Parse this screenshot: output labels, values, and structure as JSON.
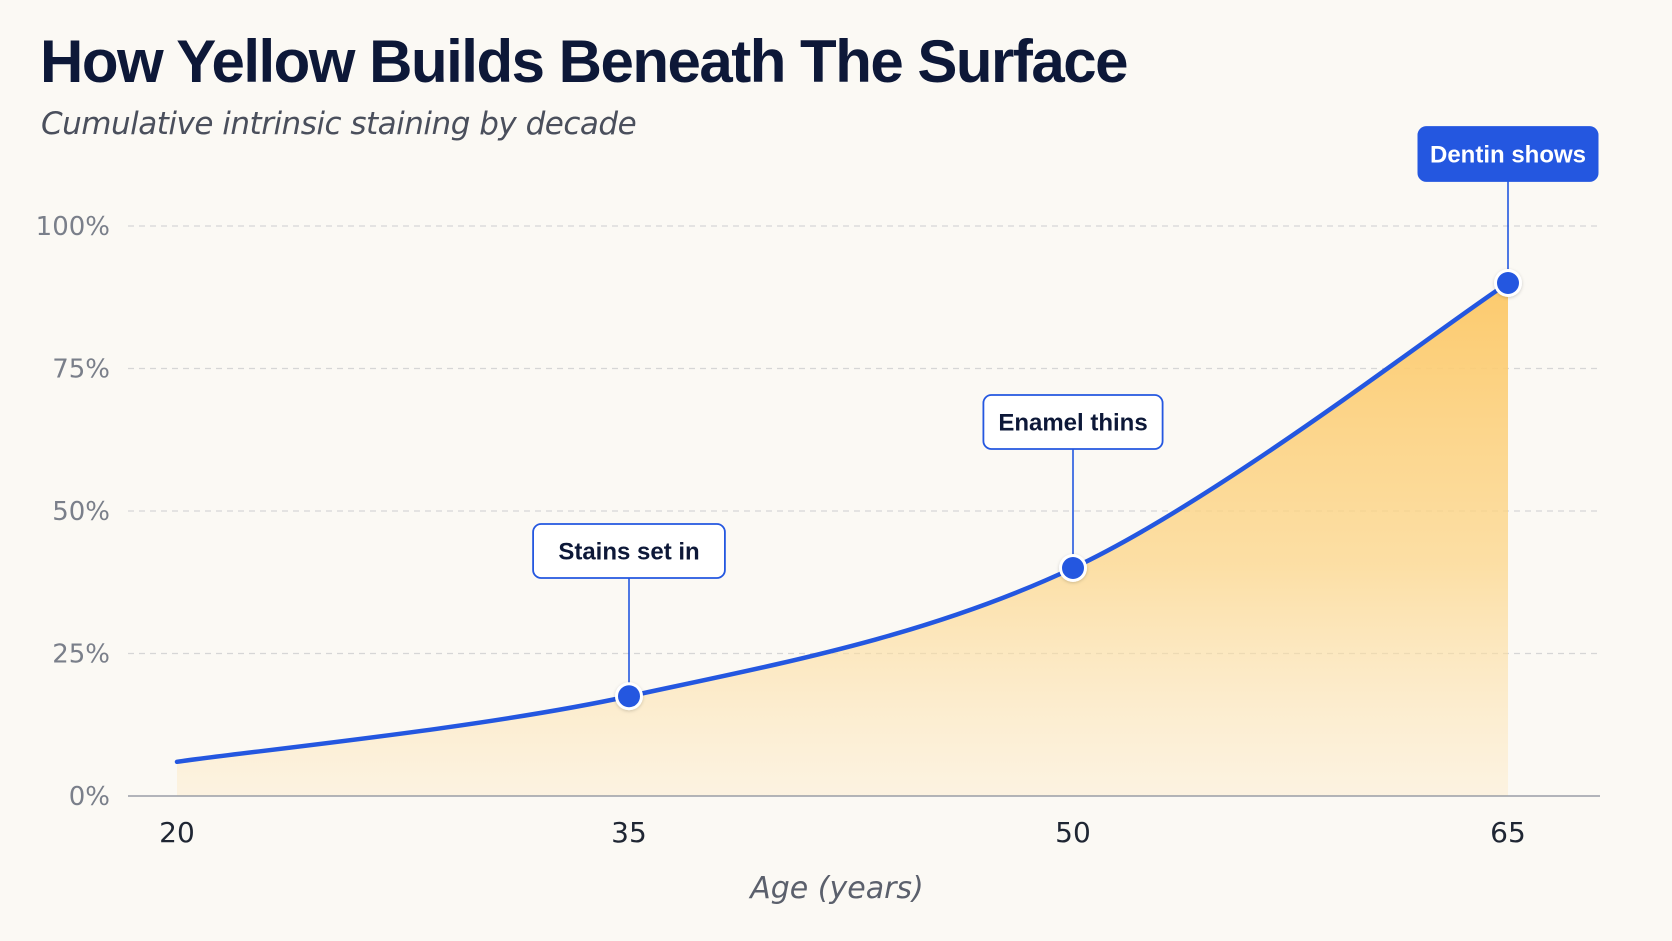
{
  "chart_data": {
    "type": "area",
    "title": "How Yellow Builds Beneath The Surface",
    "subtitle": "Cumulative intrinsic staining by decade",
    "xlabel": "Age (years)",
    "ylabel": "",
    "x": [
      20,
      35,
      50,
      65
    ],
    "x_ticks": [
      "20",
      "35",
      "50",
      "65"
    ],
    "y_ticks": [
      "0%",
      "25%",
      "50%",
      "75%",
      "100%"
    ],
    "xlim": [
      20,
      65
    ],
    "ylim": [
      0,
      100
    ],
    "series": [
      {
        "values": [
          6,
          17.5,
          40,
          90
        ],
        "color": "#2457e0",
        "fill_color": "#fcc96a"
      }
    ],
    "grid": true,
    "annotations": [
      {
        "x": 35,
        "y": 17.5,
        "text": "Stains set in",
        "style": "outline"
      },
      {
        "x": 50,
        "y": 40,
        "text": "Enamel thins",
        "style": "outline"
      },
      {
        "x": 65,
        "y": 90,
        "text": "Dentin shows",
        "style": "filled"
      }
    ],
    "colors": {
      "background": "#fbf9f4",
      "line": "#2457e0",
      "accent": "#2457e0",
      "grid": "#d6d6d6",
      "axis": "#9a9ea6"
    }
  }
}
